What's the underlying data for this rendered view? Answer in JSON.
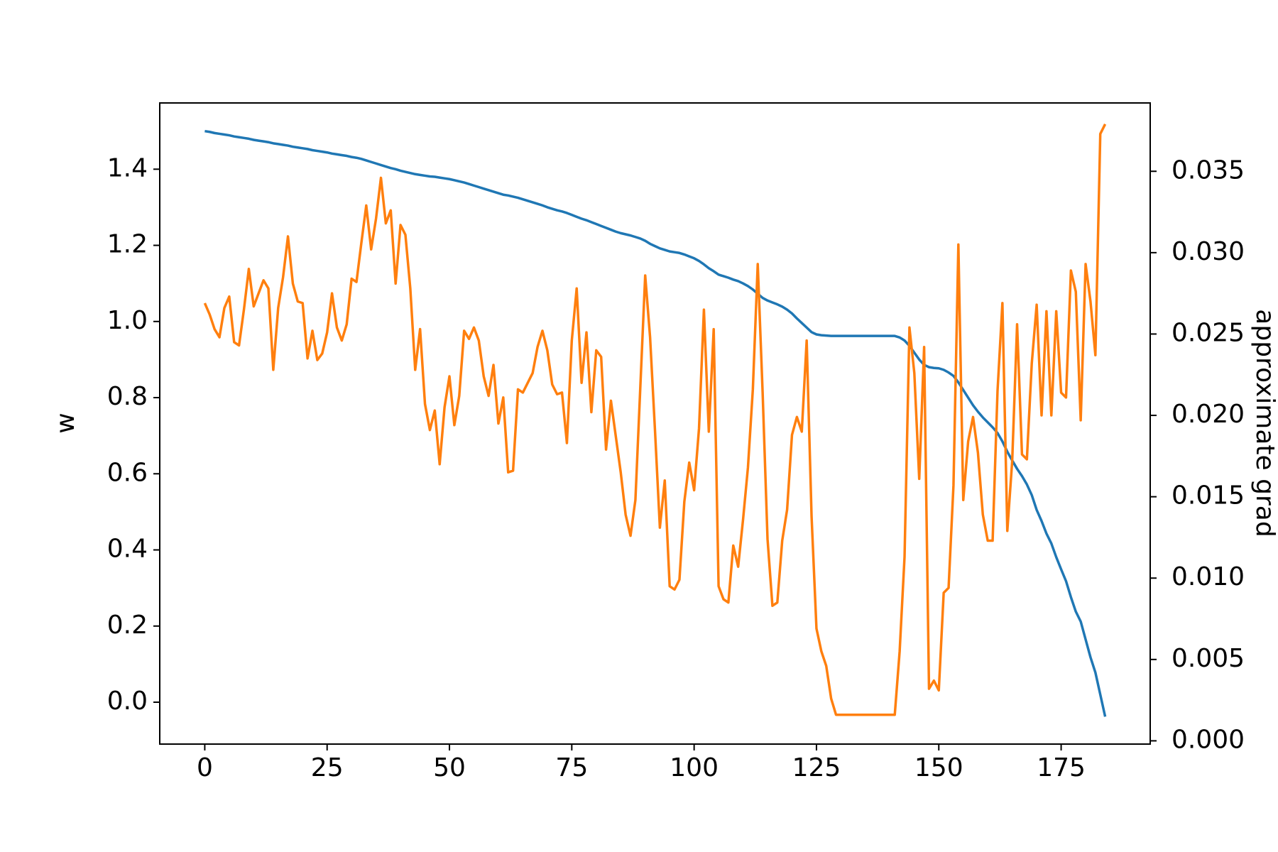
{
  "chart_data": {
    "type": "line",
    "x_label": null,
    "y_label": "w",
    "y2_label": "approximate grad",
    "x": [
      0,
      1,
      2,
      3,
      4,
      5,
      6,
      7,
      8,
      9,
      10,
      11,
      12,
      13,
      14,
      15,
      16,
      17,
      18,
      19,
      20,
      21,
      22,
      23,
      24,
      25,
      26,
      27,
      28,
      29,
      30,
      31,
      32,
      33,
      34,
      35,
      36,
      37,
      38,
      39,
      40,
      41,
      42,
      43,
      44,
      45,
      46,
      47,
      48,
      49,
      50,
      51,
      52,
      53,
      54,
      55,
      56,
      57,
      58,
      59,
      60,
      61,
      62,
      63,
      64,
      65,
      66,
      67,
      68,
      69,
      70,
      71,
      72,
      73,
      74,
      75,
      76,
      77,
      78,
      79,
      80,
      81,
      82,
      83,
      84,
      85,
      86,
      87,
      88,
      89,
      90,
      91,
      92,
      93,
      94,
      95,
      96,
      97,
      98,
      99,
      100,
      101,
      102,
      103,
      104,
      105,
      106,
      107,
      108,
      109,
      110,
      111,
      112,
      113,
      114,
      115,
      116,
      117,
      118,
      119,
      120,
      121,
      122,
      123,
      124,
      125,
      126,
      127,
      128,
      129,
      130,
      131,
      132,
      133,
      134,
      135,
      136,
      137,
      138,
      139,
      140,
      141,
      142,
      143,
      144,
      145,
      146,
      147,
      148,
      149,
      150,
      151,
      152,
      153,
      154,
      155,
      156,
      157,
      158,
      159,
      160,
      161,
      162,
      163,
      164,
      165,
      166,
      167,
      168,
      169,
      170,
      171,
      172,
      173,
      174,
      175,
      176,
      177,
      178,
      179,
      180,
      181,
      182,
      183,
      184
    ],
    "series": [
      {
        "color": "#1f77b4",
        "axis": "y",
        "values": [
          1.5,
          1.498,
          1.495,
          1.493,
          1.491,
          1.489,
          1.486,
          1.484,
          1.482,
          1.48,
          1.477,
          1.475,
          1.473,
          1.471,
          1.468,
          1.466,
          1.464,
          1.462,
          1.459,
          1.457,
          1.455,
          1.453,
          1.45,
          1.448,
          1.446,
          1.444,
          1.441,
          1.439,
          1.437,
          1.435,
          1.432,
          1.43,
          1.427,
          1.423,
          1.419,
          1.415,
          1.411,
          1.407,
          1.403,
          1.4,
          1.396,
          1.393,
          1.39,
          1.387,
          1.385,
          1.383,
          1.381,
          1.38,
          1.378,
          1.376,
          1.374,
          1.371,
          1.368,
          1.365,
          1.361,
          1.357,
          1.353,
          1.349,
          1.345,
          1.341,
          1.337,
          1.333,
          1.331,
          1.328,
          1.325,
          1.321,
          1.317,
          1.313,
          1.309,
          1.305,
          1.3,
          1.296,
          1.292,
          1.289,
          1.285,
          1.28,
          1.275,
          1.27,
          1.266,
          1.261,
          1.256,
          1.251,
          1.246,
          1.241,
          1.236,
          1.232,
          1.229,
          1.226,
          1.222,
          1.218,
          1.212,
          1.204,
          1.198,
          1.192,
          1.188,
          1.184,
          1.182,
          1.18,
          1.176,
          1.171,
          1.166,
          1.159,
          1.15,
          1.14,
          1.132,
          1.123,
          1.119,
          1.115,
          1.11,
          1.106,
          1.1,
          1.093,
          1.084,
          1.073,
          1.062,
          1.055,
          1.05,
          1.045,
          1.039,
          1.031,
          1.021,
          1.008,
          0.996,
          0.984,
          0.972,
          0.966,
          0.964,
          0.963,
          0.962,
          0.962,
          0.962,
          0.962,
          0.962,
          0.962,
          0.962,
          0.962,
          0.962,
          0.962,
          0.962,
          0.962,
          0.962,
          0.962,
          0.958,
          0.95,
          0.936,
          0.918,
          0.9,
          0.886,
          0.88,
          0.878,
          0.877,
          0.873,
          0.866,
          0.857,
          0.84,
          0.82,
          0.8,
          0.78,
          0.763,
          0.748,
          0.735,
          0.722,
          0.707,
          0.685,
          0.658,
          0.635,
          0.613,
          0.594,
          0.572,
          0.544,
          0.505,
          0.476,
          0.443,
          0.417,
          0.381,
          0.349,
          0.318,
          0.276,
          0.238,
          0.212,
          0.165,
          0.118,
          0.078,
          0.02,
          -0.038
        ]
      },
      {
        "color": "#ff7f0e",
        "axis": "y2",
        "values": [
          0.0269,
          0.0262,
          0.0253,
          0.0248,
          0.0266,
          0.0273,
          0.0245,
          0.0243,
          0.0265,
          0.029,
          0.0267,
          0.0275,
          0.0283,
          0.0278,
          0.0228,
          0.0266,
          0.0285,
          0.031,
          0.0281,
          0.027,
          0.0269,
          0.0235,
          0.0252,
          0.0234,
          0.0238,
          0.0251,
          0.0275,
          0.0254,
          0.0246,
          0.0256,
          0.0284,
          0.0282,
          0.0306,
          0.0329,
          0.0302,
          0.0321,
          0.0346,
          0.0318,
          0.0326,
          0.0281,
          0.0317,
          0.0311,
          0.0278,
          0.0228,
          0.0253,
          0.0207,
          0.0191,
          0.0203,
          0.017,
          0.0205,
          0.0224,
          0.0194,
          0.0212,
          0.0252,
          0.0247,
          0.0254,
          0.0246,
          0.0224,
          0.0212,
          0.0231,
          0.0195,
          0.0211,
          0.0165,
          0.0166,
          0.0216,
          0.0214,
          0.022,
          0.0226,
          0.0242,
          0.0252,
          0.024,
          0.0219,
          0.0213,
          0.0214,
          0.0183,
          0.0246,
          0.0278,
          0.022,
          0.0251,
          0.0202,
          0.024,
          0.0236,
          0.0179,
          0.0209,
          0.0187,
          0.0165,
          0.0139,
          0.0126,
          0.0148,
          0.0217,
          0.0286,
          0.0248,
          0.0191,
          0.0131,
          0.016,
          0.0095,
          0.0093,
          0.0099,
          0.0147,
          0.0171,
          0.0154,
          0.0192,
          0.0265,
          0.019,
          0.0253,
          0.0095,
          0.0087,
          0.0085,
          0.012,
          0.0107,
          0.0136,
          0.0168,
          0.0216,
          0.0293,
          0.0214,
          0.0124,
          0.0083,
          0.0085,
          0.0123,
          0.0142,
          0.0188,
          0.0199,
          0.019,
          0.0246,
          0.0138,
          0.0069,
          0.0055,
          0.0046,
          0.0026,
          0.0016,
          0.0016,
          0.0016,
          0.0016,
          0.0016,
          0.0016,
          0.0016,
          0.0016,
          0.0016,
          0.0016,
          0.0016,
          0.0016,
          0.0016,
          0.0055,
          0.0113,
          0.0254,
          0.0226,
          0.0161,
          0.0242,
          0.0032,
          0.0037,
          0.0031,
          0.0091,
          0.0094,
          0.0157,
          0.0305,
          0.0148,
          0.0184,
          0.0199,
          0.0177,
          0.0139,
          0.0123,
          0.0123,
          0.0215,
          0.0269,
          0.0129,
          0.0172,
          0.0256,
          0.0176,
          0.0173,
          0.0232,
          0.0268,
          0.02,
          0.0264,
          0.02,
          0.0264,
          0.0214,
          0.0211,
          0.0289,
          0.0276,
          0.0197,
          0.0293,
          0.027,
          0.0237,
          0.0373,
          0.0379
        ]
      }
    ],
    "xlim": [
      -9.2,
      193.2
    ],
    "ylim": [
      -0.11,
      1.574
    ],
    "y2lim": [
      -0.0002,
      0.0392
    ],
    "xticks": [
      0,
      25,
      50,
      75,
      100,
      125,
      150,
      175
    ],
    "yticks": [
      {
        "value": 0,
        "label": "0.0"
      },
      0.2,
      0.4,
      0.6,
      0.8,
      {
        "value": 1,
        "label": "1.0"
      },
      1.2,
      1.4
    ],
    "y2ticks": [
      {
        "value": 0,
        "label": "0.000"
      },
      0.005,
      {
        "value": 0.01,
        "label": "0.010"
      },
      0.015,
      {
        "value": 0.02,
        "label": "0.020"
      },
      0.025,
      {
        "value": 0.03,
        "label": "0.030"
      },
      0.035
    ],
    "grid": false
  }
}
